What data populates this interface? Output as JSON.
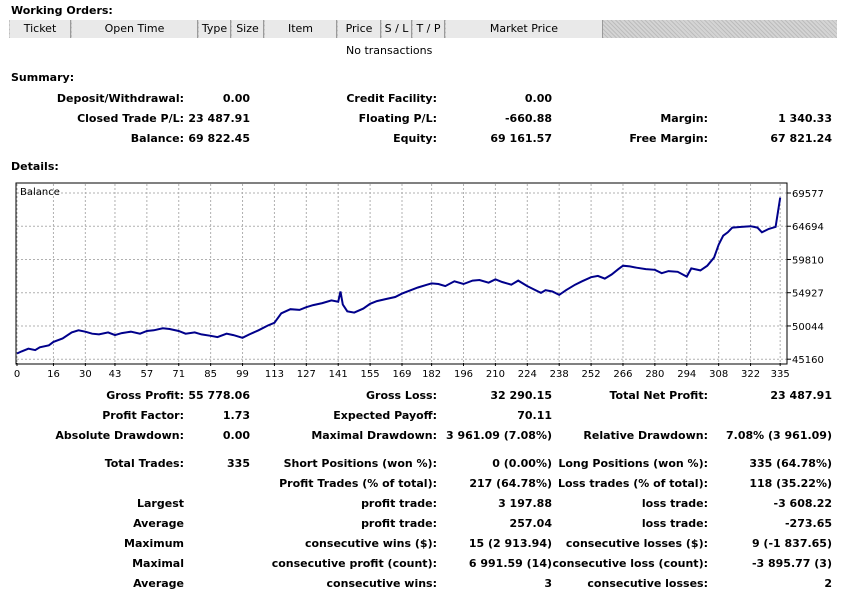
{
  "working_orders": {
    "title": "Working Orders:",
    "columns": [
      "Ticket",
      "Open Time",
      "Type",
      "Size",
      "Item",
      "Price",
      "S / L",
      "T / P",
      "Market Price"
    ],
    "empty_text": "No transactions"
  },
  "summary": {
    "title": "Summary:",
    "deposit_label": "Deposit/Withdrawal:",
    "deposit_value": "0.00",
    "credit_label": "Credit Facility:",
    "credit_value": "0.00",
    "closed_label": "Closed Trade P/L:",
    "closed_value": "23 487.91",
    "floating_label": "Floating P/L:",
    "floating_value": "-660.88",
    "margin_label": "Margin:",
    "margin_value": "1 340.33",
    "balance_label": "Balance:",
    "balance_value": "69 822.45",
    "equity_label": "Equity:",
    "equity_value": "69 161.57",
    "free_margin_label": "Free Margin:",
    "free_margin_value": "67 821.24"
  },
  "details": {
    "title": "Details:",
    "gross_profit_label": "Gross Profit:",
    "gross_profit_value": "55 778.06",
    "gross_loss_label": "Gross Loss:",
    "gross_loss_value": "32 290.15",
    "total_net_label": "Total Net Profit:",
    "total_net_value": "23 487.91",
    "profit_factor_label": "Profit Factor:",
    "profit_factor_value": "1.73",
    "expected_payoff_label": "Expected Payoff:",
    "expected_payoff_value": "70.11",
    "abs_dd_label": "Absolute Drawdown:",
    "abs_dd_value": "0.00",
    "max_dd_label": "Maximal Drawdown:",
    "max_dd_value": "3 961.09 (7.08%)",
    "rel_dd_label": "Relative Drawdown:",
    "rel_dd_value": "7.08% (3 961.09)",
    "total_trades_label": "Total Trades:",
    "total_trades_value": "335",
    "short_label": "Short Positions (won %):",
    "short_value": "0 (0.00%)",
    "long_label": "Long Positions (won %):",
    "long_value": "335 (64.78%)",
    "profit_trades_label": "Profit Trades (% of total):",
    "profit_trades_value": "217 (64.78%)",
    "loss_trades_label": "Loss trades (% of total):",
    "loss_trades_value": "118 (35.22%)",
    "largest_label": "Largest",
    "largest_profit_label": "profit trade:",
    "largest_profit_value": "3 197.88",
    "largest_loss_label": "loss trade:",
    "largest_loss_value": "-3 608.22",
    "average_label": "Average",
    "avg_profit_label": "profit trade:",
    "avg_profit_value": "257.04",
    "avg_loss_label": "loss trade:",
    "avg_loss_value": "-273.65",
    "maximum_label": "Maximum",
    "max_cons_wins_label": "consecutive wins ($):",
    "max_cons_wins_value": "15 (2 913.94)",
    "max_cons_losses_label": "consecutive losses ($):",
    "max_cons_losses_value": "9 (-1 837.65)",
    "maximal_label": "Maximal",
    "maximal_profit_label": "consecutive profit (count):",
    "maximal_profit_value": "6 991.59 (14)",
    "maximal_loss_label": "consecutive loss (count):",
    "maximal_loss_value": "-3 895.77 (3)",
    "average2_label": "Average",
    "avg_cons_wins_label": "consecutive wins:",
    "avg_cons_wins_value": "3",
    "avg_cons_losses_label": "consecutive losses:",
    "avg_cons_losses_value": "2"
  },
  "chart_data": {
    "type": "line",
    "title": "Balance",
    "series": [
      {
        "name": "Balance",
        "color": "#00008b",
        "x": [
          0,
          2,
          5,
          8,
          10,
          14,
          16,
          20,
          24,
          27,
          30,
          33,
          36,
          40,
          43,
          46,
          50,
          54,
          57,
          60,
          64,
          67,
          71,
          74,
          78,
          81,
          85,
          88,
          92,
          95,
          99,
          102,
          106,
          110,
          113,
          116,
          120,
          124,
          127,
          130,
          134,
          138,
          141,
          142,
          143,
          145,
          148,
          152,
          155,
          158,
          162,
          166,
          169,
          172,
          176,
          180,
          182,
          185,
          188,
          192,
          196,
          200,
          203,
          207,
          210,
          213,
          217,
          220,
          224,
          227,
          230,
          232,
          235,
          238,
          241,
          245,
          248,
          252,
          255,
          258,
          261,
          264,
          266,
          269,
          272,
          276,
          280,
          283,
          286,
          290,
          294,
          296,
          300,
          303,
          306,
          308,
          310,
          312,
          314,
          318,
          322,
          325,
          327,
          330,
          333,
          335
        ],
        "y": [
          46000,
          46300,
          46700,
          46500,
          46900,
          47200,
          47700,
          48200,
          49100,
          49400,
          49200,
          48900,
          48800,
          49100,
          48700,
          49000,
          49200,
          48900,
          49300,
          49400,
          49700,
          49600,
          49300,
          48900,
          49100,
          48800,
          48600,
          48400,
          48900,
          48700,
          48300,
          48800,
          49400,
          50100,
          50500,
          51900,
          52500,
          52400,
          52800,
          53100,
          53400,
          53800,
          53600,
          55100,
          53200,
          52200,
          52000,
          52600,
          53300,
          53700,
          54000,
          54300,
          54800,
          55200,
          55700,
          56100,
          56300,
          56200,
          55900,
          56600,
          56200,
          56700,
          56800,
          56400,
          56900,
          56500,
          56100,
          56700,
          55900,
          55400,
          54900,
          55300,
          55100,
          54600,
          55300,
          56100,
          56600,
          57200,
          57400,
          57000,
          57600,
          58400,
          58900,
          58800,
          58600,
          58400,
          58300,
          57800,
          58100,
          58000,
          57300,
          58500,
          58200,
          58900,
          60100,
          62000,
          63300,
          63800,
          64500,
          64600,
          64700,
          64500,
          63800,
          64300,
          64600,
          68900
        ]
      }
    ],
    "x_ticks": [
      "0",
      "16",
      "30",
      "43",
      "57",
      "71",
      "85",
      "99",
      "113",
      "127",
      "141",
      "155",
      "169",
      "182",
      "196",
      "210",
      "224",
      "238",
      "252",
      "266",
      "280",
      "294",
      "308",
      "322",
      "335"
    ],
    "y_ticks": [
      "69577",
      "64694",
      "59810",
      "54927",
      "50044",
      "45160"
    ],
    "xlim": [
      0,
      338
    ],
    "ylim": [
      44600,
      70900
    ],
    "grid": true
  }
}
